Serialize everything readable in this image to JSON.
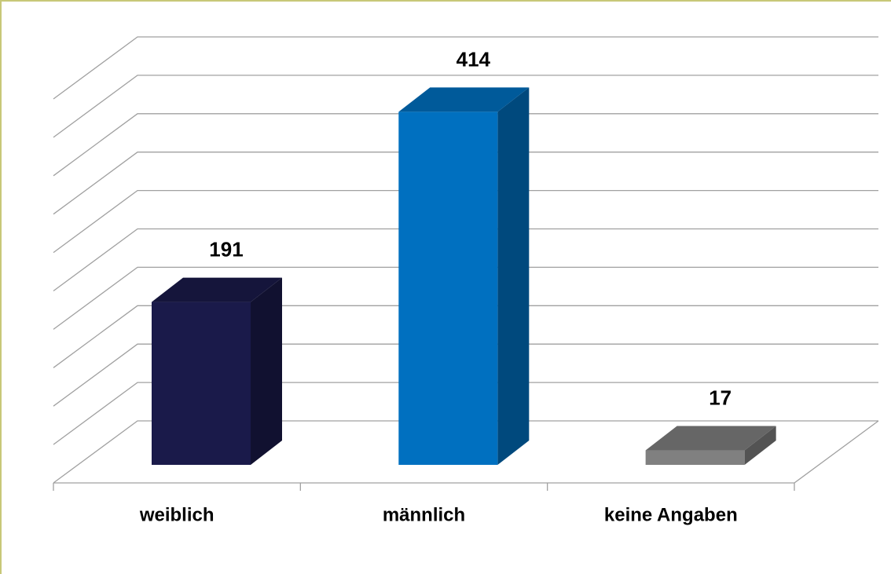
{
  "chart_data": {
    "type": "bar3d",
    "categories": [
      "weiblich",
      "männlich",
      "keine Angaben"
    ],
    "values": [
      191,
      414,
      17
    ],
    "colors": [
      "#1a1a4a",
      "#0070c0",
      "#808080"
    ],
    "ylim": [
      0,
      500
    ],
    "yticks": [
      0,
      50,
      100,
      150,
      200,
      250,
      300,
      350,
      400,
      450,
      500
    ],
    "grid": true
  }
}
